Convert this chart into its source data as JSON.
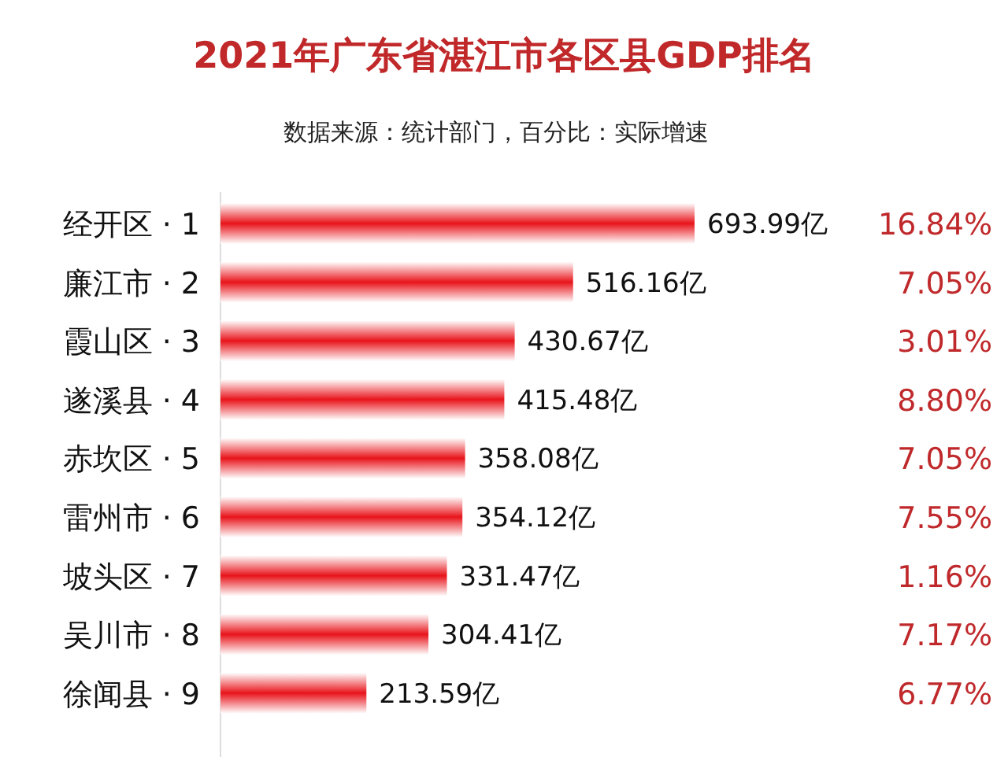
{
  "chart_data": {
    "type": "bar",
    "orientation": "horizontal",
    "title": "2021年广东省湛江市各区县GDP排名",
    "subtitle": "数据来源：统计部门，百分比：实际增速",
    "categories": [
      "经开区 · 1",
      "廉江市 · 2",
      "霞山区 · 3",
      "遂溪县 · 4",
      "赤坎区 · 5",
      "雷州市 · 6",
      "坡头区 · 7",
      "吴川市 · 8",
      "徐闻县 · 9"
    ],
    "values": [
      693.99,
      516.16,
      430.67,
      415.48,
      358.08,
      354.12,
      331.47,
      304.41,
      213.59
    ],
    "value_labels": [
      "693.99亿",
      "516.16亿",
      "430.67亿",
      "415.48亿",
      "358.08亿",
      "354.12亿",
      "331.47亿",
      "304.41亿",
      "213.59亿"
    ],
    "color": "#e8141b",
    "annotations": [
      "16.84%",
      "7.05%",
      "3.01%",
      "8.80%",
      "7.05%",
      "7.55%",
      "1.16%",
      "7.17%",
      "6.77%"
    ]
  }
}
